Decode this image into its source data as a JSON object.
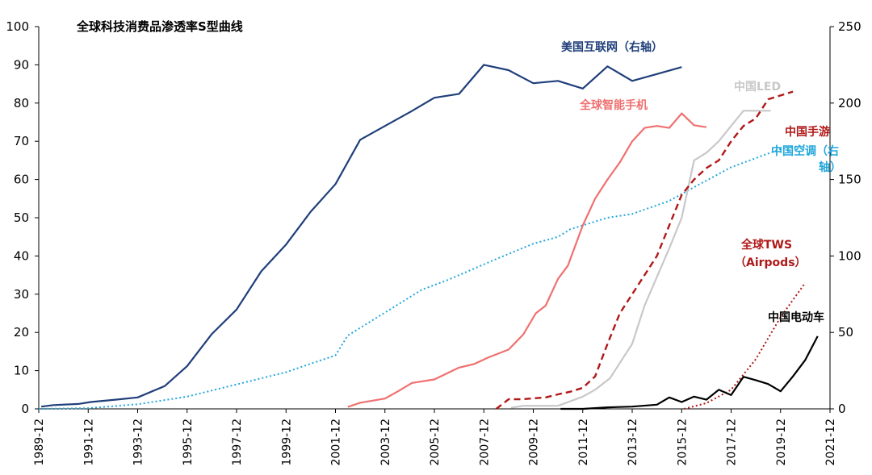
{
  "chart_data": {
    "type": "line",
    "title": "全球科技消费品渗透率S型曲线",
    "left_axis": {
      "ylim": [
        0,
        100
      ],
      "ticks": [
        0,
        10,
        20,
        30,
        40,
        50,
        60,
        70,
        80,
        90,
        100
      ]
    },
    "right_axis": {
      "ylim": [
        0,
        250
      ],
      "ticks": [
        0,
        50,
        100,
        150,
        200,
        250
      ]
    },
    "x_ticks": [
      "1989-12",
      "1991-12",
      "1993-12",
      "1995-12",
      "1997-12",
      "1999-12",
      "2001-12",
      "2003-12",
      "2005-12",
      "2007-12",
      "2009-12",
      "2011-12",
      "2013-12",
      "2015-12",
      "2017-12",
      "2019-12",
      "2021-12"
    ],
    "x_range": [
      1989.9,
      2021.9
    ],
    "grid": false,
    "legend": "inline labels",
    "series": [
      {
        "name": "美国互联网（右轴）",
        "axis": "right",
        "color": "#1f3f7a",
        "style": "solid",
        "points": [
          [
            1990.0,
            1.5
          ],
          [
            1990.5,
            2.5
          ],
          [
            1991.5,
            3.2
          ],
          [
            1992.0,
            4.5
          ],
          [
            1993.0,
            6.0
          ],
          [
            1993.9,
            7.5
          ],
          [
            1995.0,
            15.0
          ],
          [
            1995.9,
            28.0
          ],
          [
            1996.9,
            49.0
          ],
          [
            1997.9,
            65.0
          ],
          [
            1998.9,
            90.0
          ],
          [
            1999.9,
            107.5
          ],
          [
            2000.9,
            129.0
          ],
          [
            2001.9,
            147.0
          ],
          [
            2002.9,
            176.0
          ],
          [
            2003.9,
            185.0
          ],
          [
            2004.9,
            194.0
          ],
          [
            2005.9,
            203.5
          ],
          [
            2006.9,
            206.0
          ],
          [
            2007.9,
            225.0
          ],
          [
            2008.9,
            221.5
          ],
          [
            2009.9,
            213.0
          ],
          [
            2010.9,
            214.5
          ],
          [
            2011.9,
            209.5
          ],
          [
            2012.9,
            224.0
          ],
          [
            2013.9,
            214.5
          ],
          [
            2014.9,
            219.0
          ],
          [
            2015.9,
            223.5
          ]
        ]
      },
      {
        "name": "中国空调（右轴）",
        "axis": "right",
        "color": "#21a7dc",
        "style": "dotted",
        "points": [
          [
            1989.9,
            0.0
          ],
          [
            1991.9,
            0.5
          ],
          [
            1993.9,
            3.0
          ],
          [
            1995.9,
            8.0
          ],
          [
            1997.9,
            16.0
          ],
          [
            1999.9,
            24.0
          ],
          [
            2001.9,
            35.0
          ],
          [
            2002.4,
            48.0
          ],
          [
            2003.9,
            63.0
          ],
          [
            2004.9,
            73.0
          ],
          [
            2005.4,
            78.0
          ],
          [
            2006.4,
            84.0
          ],
          [
            2007.4,
            91.0
          ],
          [
            2008.4,
            98.0
          ],
          [
            2009.9,
            108.0
          ],
          [
            2010.9,
            112.5
          ],
          [
            2011.4,
            117.5
          ],
          [
            2012.9,
            125.0
          ],
          [
            2013.9,
            127.5
          ],
          [
            2015.4,
            136.0
          ],
          [
            2016.4,
            145.0
          ],
          [
            2017.9,
            158.0
          ],
          [
            2018.9,
            164.0
          ],
          [
            2019.9,
            170.0
          ],
          [
            2020.9,
            172.5
          ]
        ]
      },
      {
        "name": "全球智能手机",
        "axis": "left",
        "color": "#f07070",
        "style": "solid",
        "points": [
          [
            2002.4,
            0.5
          ],
          [
            2002.9,
            1.6
          ],
          [
            2003.9,
            2.7
          ],
          [
            2004.4,
            4.5
          ],
          [
            2005.0,
            6.8
          ],
          [
            2005.9,
            7.7
          ],
          [
            2006.9,
            10.8
          ],
          [
            2007.5,
            11.7
          ],
          [
            2008.1,
            13.5
          ],
          [
            2008.9,
            15.5
          ],
          [
            2009.5,
            19.5
          ],
          [
            2010.0,
            25.0
          ],
          [
            2010.4,
            27.0
          ],
          [
            2010.9,
            34.0
          ],
          [
            2011.3,
            37.5
          ],
          [
            2011.9,
            48.0
          ],
          [
            2012.4,
            55.0
          ],
          [
            2012.9,
            60.0
          ],
          [
            2013.4,
            64.5
          ],
          [
            2013.9,
            70.0
          ],
          [
            2014.4,
            73.5
          ],
          [
            2014.9,
            74.0
          ],
          [
            2015.4,
            73.5
          ],
          [
            2015.9,
            77.3
          ],
          [
            2016.4,
            74.2
          ],
          [
            2016.9,
            73.7
          ]
        ]
      },
      {
        "name": "中国LED",
        "axis": "left",
        "color": "#c8c8c8",
        "style": "solid",
        "points": [
          [
            2009.0,
            0.3
          ],
          [
            2009.5,
            0.8
          ],
          [
            2010.9,
            0.8
          ],
          [
            2011.4,
            2.0
          ],
          [
            2011.9,
            3.2
          ],
          [
            2012.4,
            5.0
          ],
          [
            2013.0,
            8.0
          ],
          [
            2013.9,
            17.0
          ],
          [
            2014.4,
            27.0
          ],
          [
            2015.4,
            42.0
          ],
          [
            2015.9,
            50.0
          ],
          [
            2016.4,
            65.0
          ],
          [
            2016.9,
            67.0
          ],
          [
            2017.4,
            70.0
          ],
          [
            2017.9,
            74.0
          ],
          [
            2018.4,
            78.0
          ],
          [
            2019.5,
            78.0
          ]
        ]
      },
      {
        "name": "中国手游",
        "axis": "left",
        "color": "#b01818",
        "style": "dashed",
        "points": [
          [
            2008.4,
            0.0
          ],
          [
            2008.9,
            2.5
          ],
          [
            2009.4,
            2.5
          ],
          [
            2010.4,
            3.0
          ],
          [
            2010.9,
            3.8
          ],
          [
            2011.4,
            4.5
          ],
          [
            2011.9,
            5.5
          ],
          [
            2012.4,
            8.5
          ],
          [
            2012.9,
            17.0
          ],
          [
            2013.4,
            25.0
          ],
          [
            2013.9,
            30.0
          ],
          [
            2014.4,
            35.0
          ],
          [
            2014.9,
            40.0
          ],
          [
            2015.4,
            48.0
          ],
          [
            2015.9,
            56.0
          ],
          [
            2016.4,
            60.0
          ],
          [
            2016.9,
            63.0
          ],
          [
            2017.4,
            65.0
          ],
          [
            2017.9,
            70.0
          ],
          [
            2018.4,
            74.0
          ],
          [
            2018.9,
            76.0
          ],
          [
            2019.4,
            81.0
          ],
          [
            2020.4,
            83.0
          ]
        ]
      },
      {
        "name": "全球TWS（Airpods）",
        "axis": "left",
        "color": "#b01818",
        "style": "dotted",
        "points": [
          [
            2016.0,
            0.0
          ],
          [
            2016.9,
            1.5
          ],
          [
            2017.9,
            5.0
          ],
          [
            2018.9,
            13.0
          ],
          [
            2019.9,
            24.0
          ],
          [
            2020.9,
            33.0
          ]
        ]
      },
      {
        "name": "中国电动车",
        "axis": "left",
        "color": "#000000",
        "style": "solid",
        "points": [
          [
            2011.0,
            0.0
          ],
          [
            2011.9,
            0.0
          ],
          [
            2012.9,
            0.4
          ],
          [
            2013.9,
            0.6
          ],
          [
            2014.9,
            1.1
          ],
          [
            2015.4,
            3.0
          ],
          [
            2015.9,
            1.8
          ],
          [
            2016.4,
            3.2
          ],
          [
            2016.9,
            2.4
          ],
          [
            2017.4,
            5.0
          ],
          [
            2017.9,
            3.6
          ],
          [
            2018.4,
            8.4
          ],
          [
            2018.9,
            7.5
          ],
          [
            2019.4,
            6.5
          ],
          [
            2019.9,
            4.6
          ],
          [
            2020.4,
            8.5
          ],
          [
            2020.9,
            12.8
          ],
          [
            2021.4,
            19.0
          ]
        ]
      }
    ]
  }
}
